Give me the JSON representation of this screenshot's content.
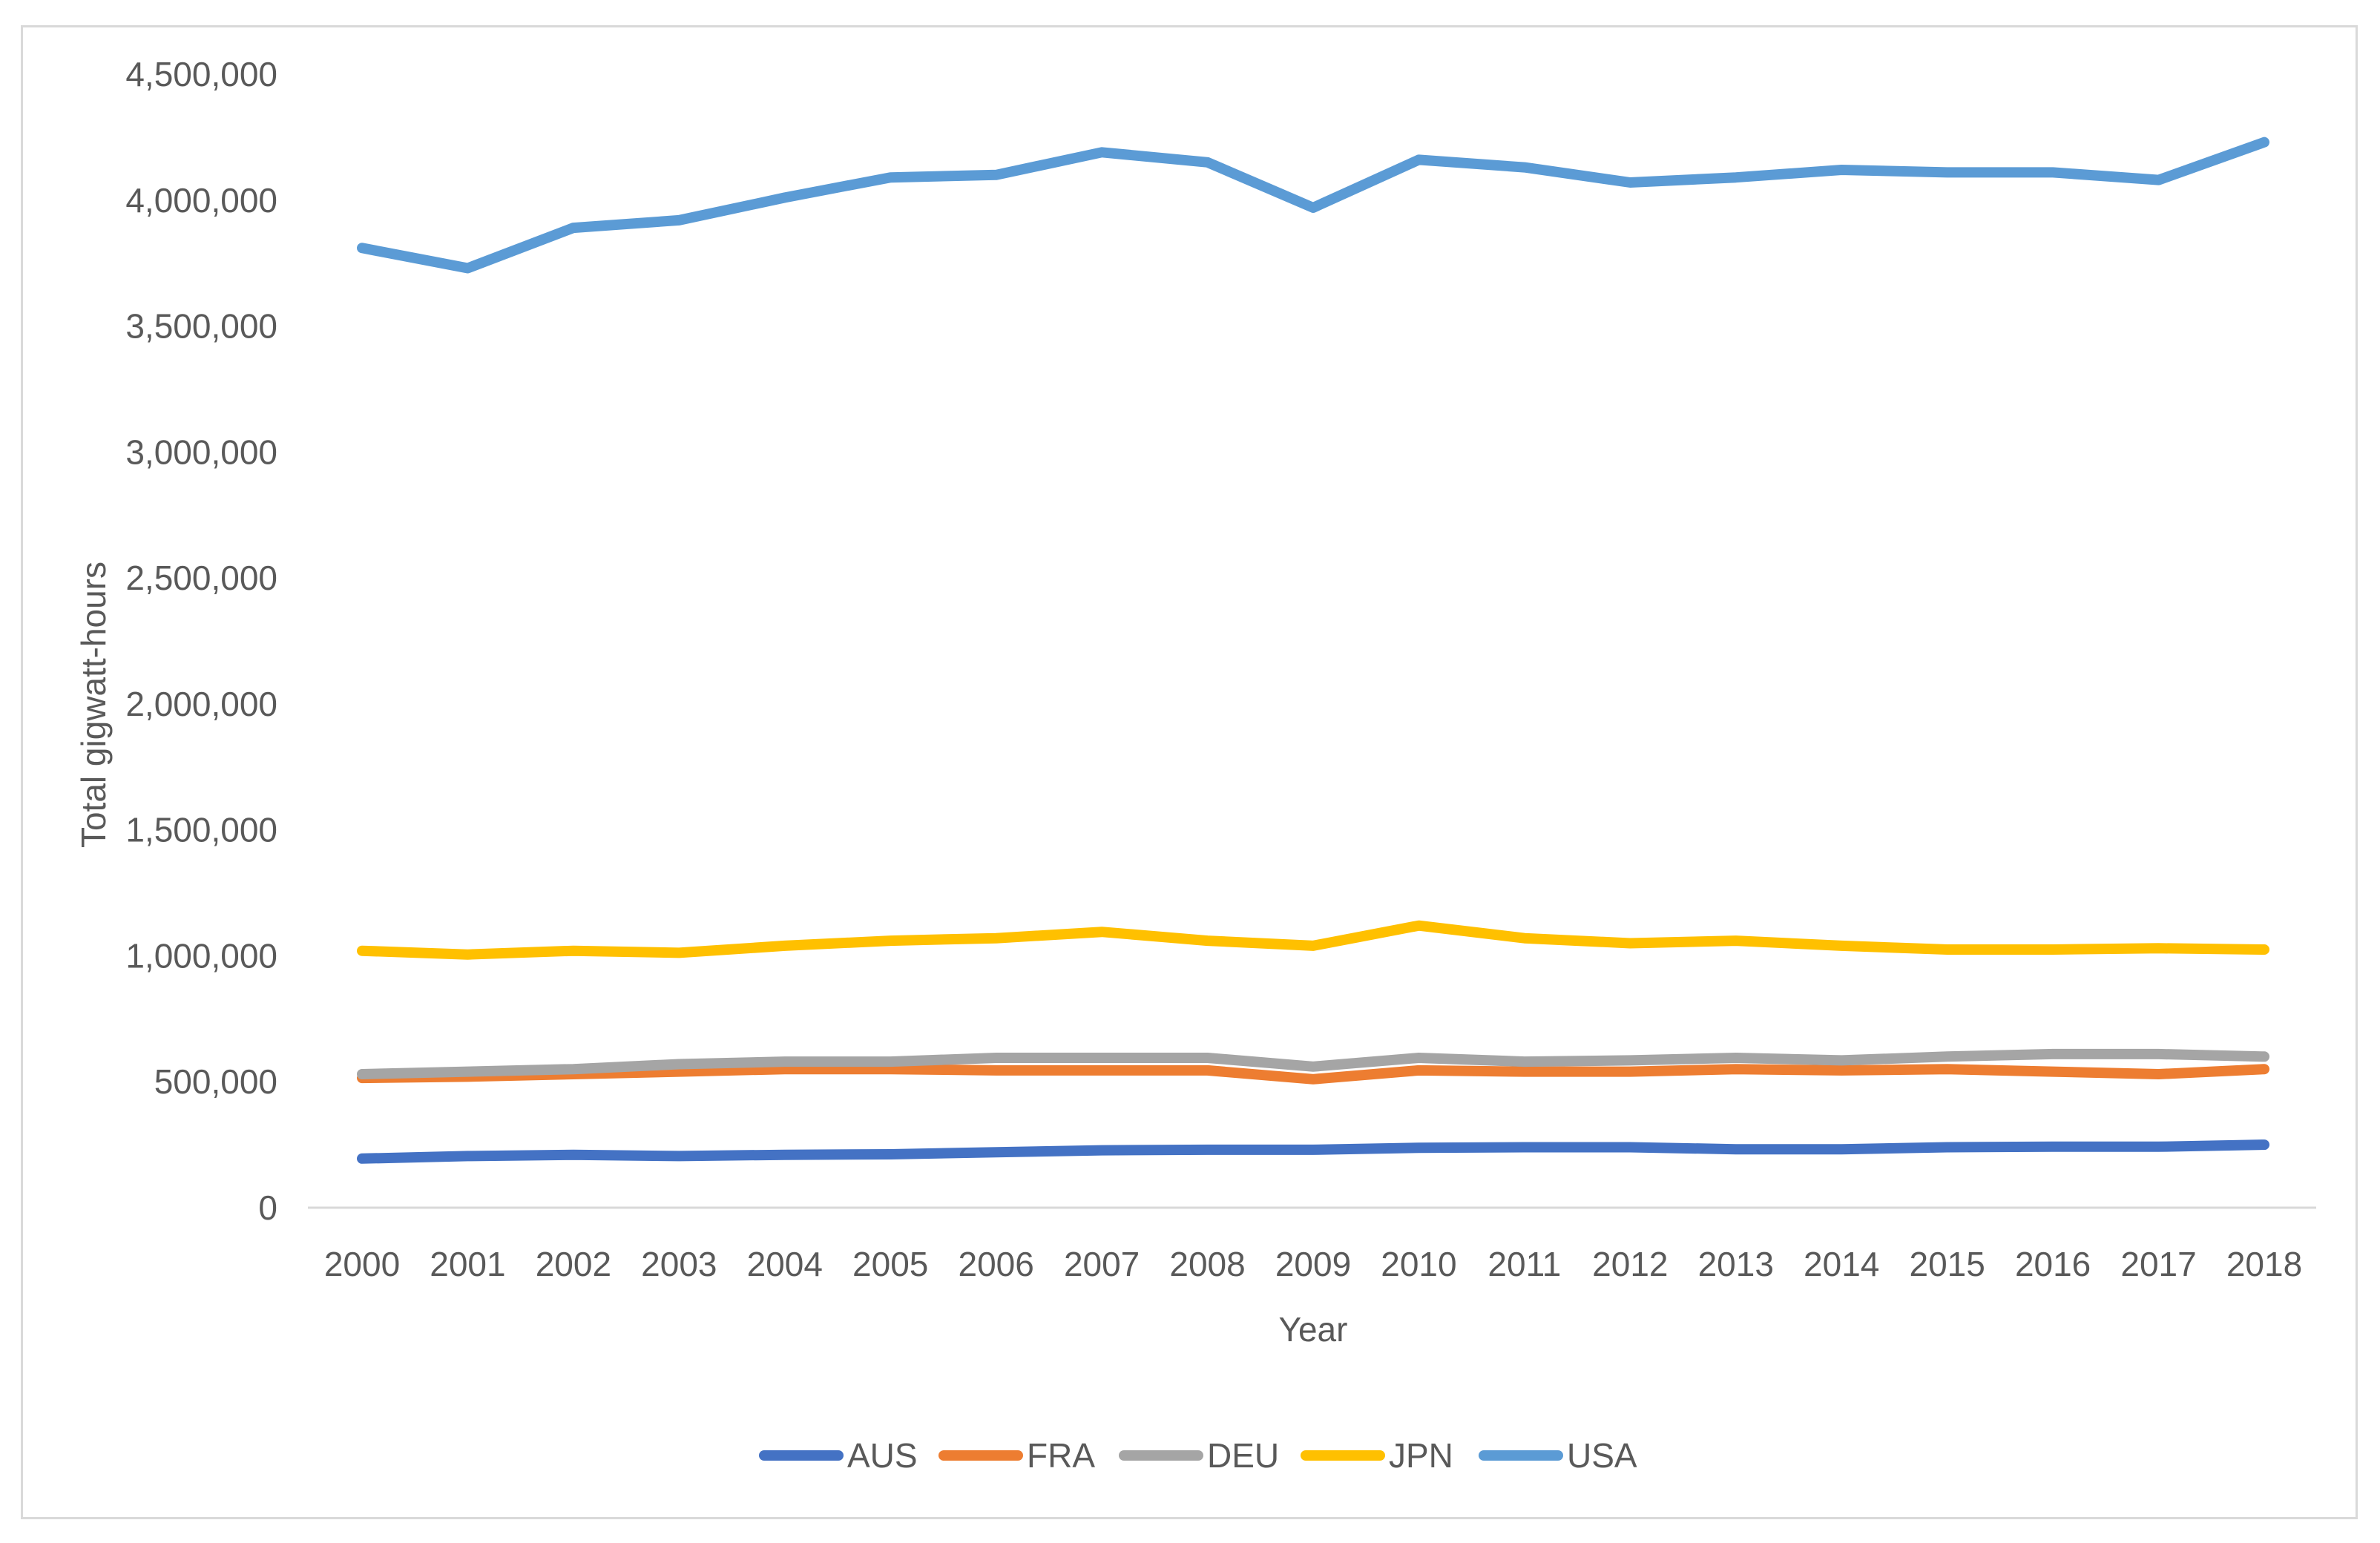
{
  "chart_data": {
    "type": "line",
    "title": "",
    "xlabel": "Year",
    "ylabel": "Total gigwatt-hours",
    "ylim": [
      0,
      4500000
    ],
    "yticks": [
      0,
      500000,
      1000000,
      1500000,
      2000000,
      2500000,
      3000000,
      3500000,
      4000000,
      4500000
    ],
    "ytick_labels": [
      "0",
      "500,000",
      "1,000,000",
      "1,500,000",
      "2,000,000",
      "2,500,000",
      "3,000,000",
      "3,500,000",
      "4,000,000",
      "4,500,000"
    ],
    "categories": [
      "2000",
      "2001",
      "2002",
      "2003",
      "2004",
      "2005",
      "2006",
      "2007",
      "2008",
      "2009",
      "2010",
      "2011",
      "2012",
      "2013",
      "2014",
      "2015",
      "2016",
      "2017",
      "2018"
    ],
    "grid": false,
    "legend_position": "bottom",
    "series": [
      {
        "name": "AUS",
        "color": "#4472c4",
        "values": [
          195000,
          205000,
          210000,
          205000,
          210000,
          212000,
          220000,
          228000,
          230000,
          230000,
          238000,
          240000,
          240000,
          232000,
          232000,
          240000,
          242000,
          242000,
          250000
        ]
      },
      {
        "name": "FRA",
        "color": "#ed7d31",
        "values": [
          515000,
          520000,
          530000,
          540000,
          550000,
          550000,
          545000,
          545000,
          545000,
          510000,
          545000,
          540000,
          540000,
          550000,
          545000,
          550000,
          540000,
          530000,
          550000
        ]
      },
      {
        "name": "DEU",
        "color": "#a5a5a5",
        "values": [
          530000,
          540000,
          550000,
          570000,
          580000,
          580000,
          595000,
          595000,
          595000,
          560000,
          595000,
          580000,
          585000,
          595000,
          585000,
          600000,
          610000,
          610000,
          600000
        ]
      },
      {
        "name": "JPN",
        "color": "#ffc000",
        "values": [
          1020000,
          1005000,
          1020000,
          1012000,
          1040000,
          1060000,
          1070000,
          1095000,
          1060000,
          1040000,
          1120000,
          1070000,
          1050000,
          1060000,
          1040000,
          1025000,
          1025000,
          1030000,
          1025000
        ]
      },
      {
        "name": "USA",
        "color": "#5b9bd5",
        "values": [
          3810000,
          3730000,
          3890000,
          3920000,
          4010000,
          4090000,
          4100000,
          4190000,
          4150000,
          3970000,
          4160000,
          4130000,
          4070000,
          4090000,
          4120000,
          4110000,
          4110000,
          4080000,
          4230000
        ]
      }
    ]
  }
}
